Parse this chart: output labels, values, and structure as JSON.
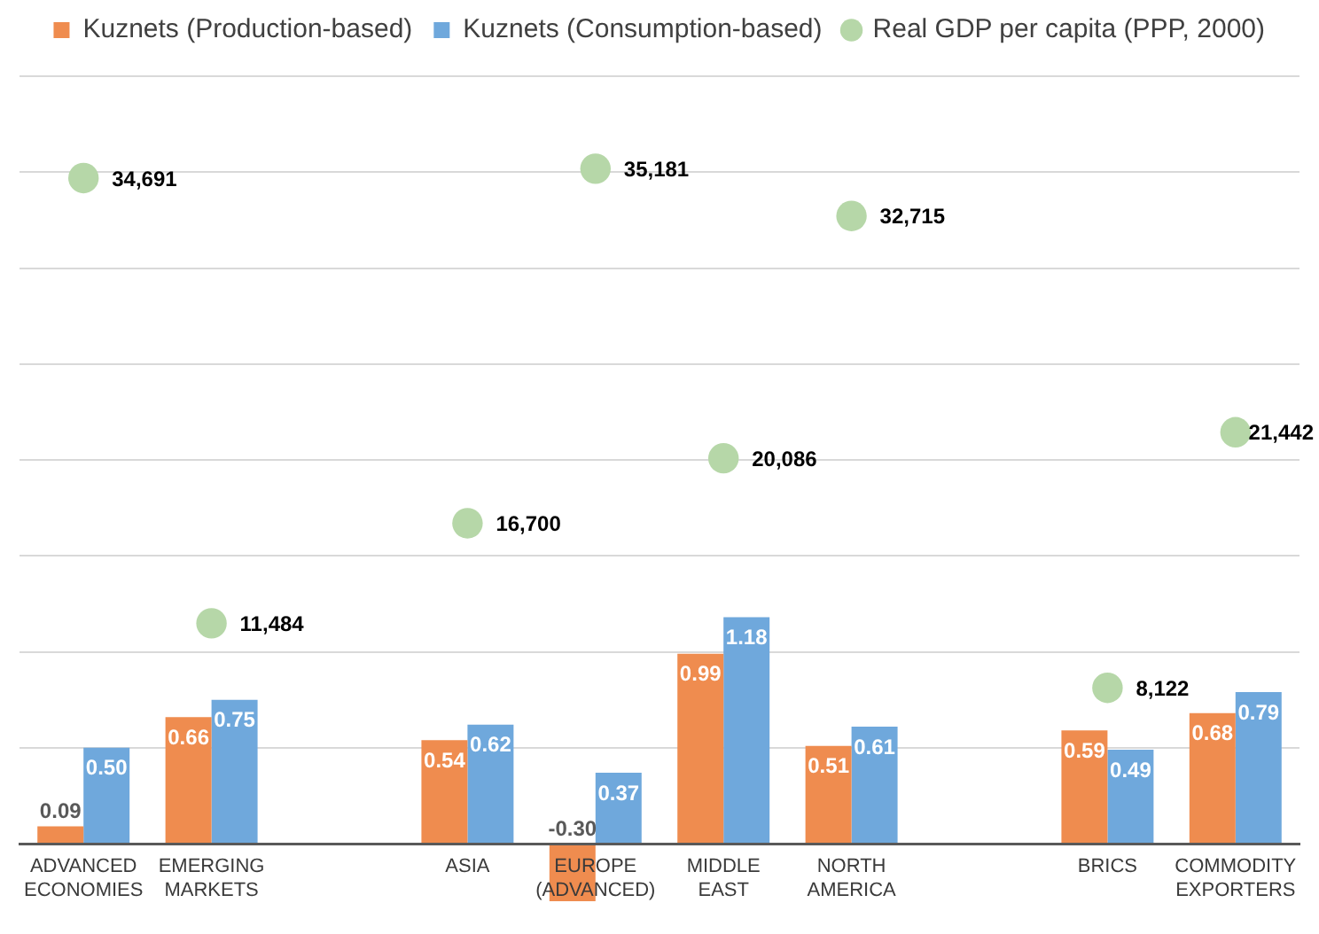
{
  "chart_data": {
    "type": "bar",
    "categories": [
      "ADVANCED ECONOMIES",
      "EMERGING MARKETS",
      null,
      "ASIA",
      "EUROPE (ADVANCED)",
      "MIDDLE EAST",
      "NORTH AMERICA",
      null,
      "BRICS",
      "COMMODITY EXPORTERS"
    ],
    "series": [
      {
        "name": "Kuznets (Production-based)",
        "color": "#ef8c4f",
        "values": [
          0.09,
          0.66,
          null,
          0.54,
          -0.3,
          0.99,
          0.51,
          null,
          0.59,
          0.68
        ],
        "value_labels": [
          "0.09",
          "0.66",
          null,
          "0.54",
          "-0.30",
          "0.99",
          "0.51",
          null,
          "0.59",
          "0.68"
        ]
      },
      {
        "name": "Kuznets (Consumption-based)",
        "color": "#6fa8dc",
        "values": [
          0.5,
          0.75,
          null,
          0.62,
          0.37,
          1.18,
          0.61,
          null,
          0.49,
          0.79
        ],
        "value_labels": [
          "0.50",
          "0.75",
          null,
          "0.62",
          "0.37",
          "1.18",
          "0.61",
          null,
          "0.49",
          "0.79"
        ]
      },
      {
        "name": "Real GDP per capita (PPP, 2000)",
        "type": "scatter",
        "axis": "y2",
        "color": "#b6d7a8",
        "values": [
          34691,
          11484,
          null,
          16700,
          35181,
          20086,
          32715,
          null,
          8122,
          21442
        ],
        "value_labels": [
          "34,691",
          "11,484",
          null,
          "16,700",
          "35,181",
          "20,086",
          "32,715",
          null,
          "8,122",
          "21,442"
        ]
      }
    ],
    "ylim": [
      -0.3,
      4
    ],
    "y2lim": [
      -3000,
      40000
    ],
    "y2ticks": [
      0,
      5000,
      10000,
      15000,
      20000,
      25000,
      30000,
      35000,
      40000
    ],
    "grid": "y",
    "legend": "top",
    "tick_labels": "x",
    "marker": "circle"
  }
}
